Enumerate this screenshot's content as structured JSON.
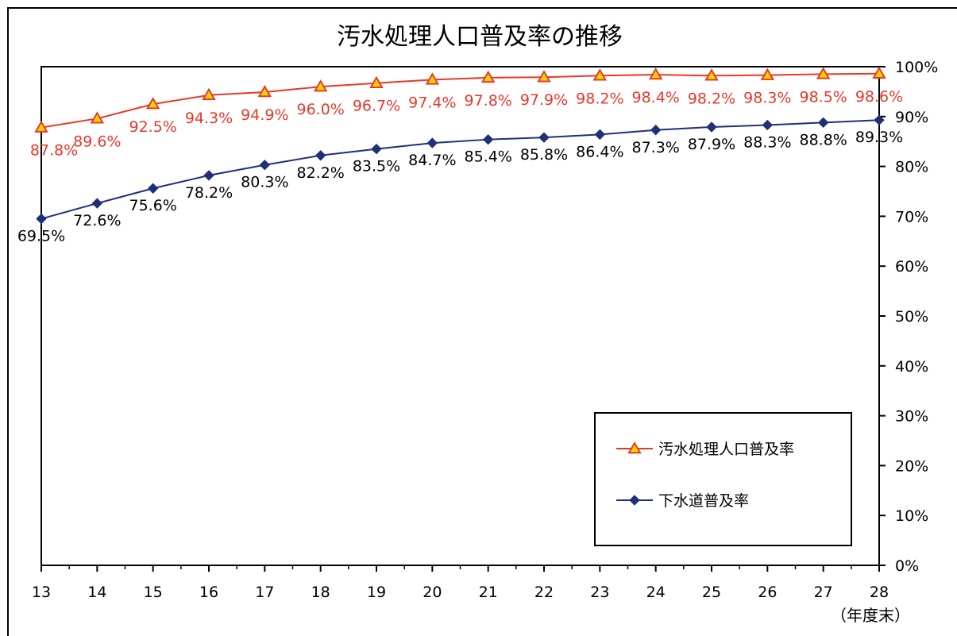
{
  "chart_data": {
    "type": "line",
    "title": "汚水処理人口普及率の推移",
    "x_unit_label": "（年度末）",
    "categories": [
      "13",
      "14",
      "15",
      "16",
      "17",
      "18",
      "19",
      "20",
      "21",
      "22",
      "23",
      "24",
      "25",
      "26",
      "27",
      "28"
    ],
    "y_axis": {
      "position": "right",
      "min": 0,
      "max": 100,
      "step": 10,
      "tick_labels": [
        "0%",
        "10%",
        "20%",
        "30%",
        "40%",
        "50%",
        "60%",
        "70%",
        "80%",
        "90%",
        "100%"
      ]
    },
    "grid": false,
    "legend_position": "bottom-right",
    "series": [
      {
        "name": "汚水処理人口普及率",
        "color": "#e8382a",
        "marker": "triangle",
        "marker_fill": "#ffd700",
        "label_color": "#e8382a",
        "values": [
          87.8,
          89.6,
          92.5,
          94.3,
          94.9,
          96.0,
          96.7,
          97.4,
          97.8,
          97.9,
          98.2,
          98.4,
          98.2,
          98.3,
          98.5,
          98.6
        ],
        "labels": [
          "87.8%",
          "89.6%",
          "92.5%",
          "94.3%",
          "94.9%",
          "96.0%",
          "96.7%",
          "97.4%",
          "97.8%",
          "97.9%",
          "98.2%",
          "98.4%",
          "98.2%",
          "98.3%",
          "98.5%",
          "98.6%"
        ]
      },
      {
        "name": "下水道普及率",
        "color": "#1f2f7a",
        "marker": "diamond",
        "marker_fill": "#1f2f7a",
        "label_color": "#000000",
        "values": [
          69.5,
          72.6,
          75.6,
          78.2,
          80.3,
          82.2,
          83.5,
          84.7,
          85.4,
          85.8,
          86.4,
          87.3,
          87.9,
          88.3,
          88.8,
          89.3
        ],
        "labels": [
          "69.5%",
          "72.6%",
          "75.6%",
          "78.2%",
          "80.3%",
          "82.2%",
          "83.5%",
          "84.7%",
          "85.4%",
          "85.8%",
          "86.4%",
          "87.3%",
          "87.9%",
          "88.3%",
          "88.8%",
          "89.3%"
        ]
      }
    ]
  }
}
